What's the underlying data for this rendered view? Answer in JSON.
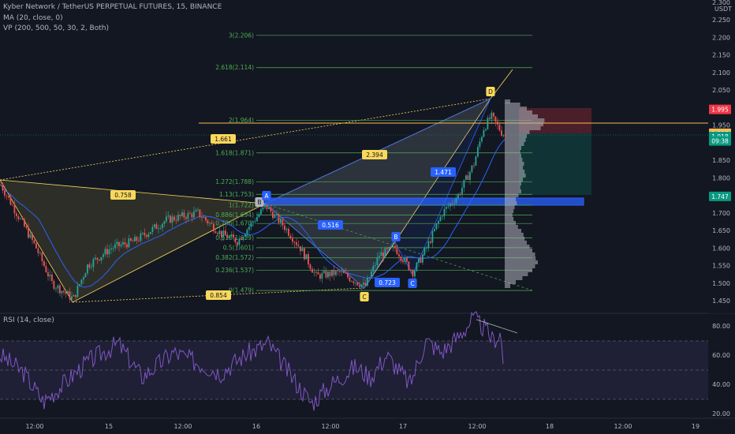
{
  "header": {
    "symbol_line": "Kyber Network / TetherUS PERPETUAL FUTURES, 15, BINANCE",
    "ma_line": "MA (20, close, 0)",
    "vp_line": "VP (200, 500, 50, 30, 2, Both)",
    "rsi_line": "RSI (14, close)"
  },
  "price_axis": {
    "currency": "USDT",
    "ticks": [
      "2.300",
      "2.250",
      "2.200",
      "2.150",
      "2.100",
      "2.050",
      "2.000",
      "1.950",
      "1.900",
      "1.850",
      "1.800",
      "1.750",
      "1.700",
      "1.650",
      "1.600",
      "1.550",
      "1.500",
      "1.450"
    ],
    "tick_values": [
      2.3,
      2.25,
      2.2,
      2.15,
      2.1,
      2.05,
      2.0,
      1.95,
      1.9,
      1.85,
      1.8,
      1.75,
      1.7,
      1.65,
      1.6,
      1.55,
      1.5,
      1.45
    ],
    "badges": [
      {
        "text": "1.995",
        "value": 1.995,
        "color": "#f23645"
      },
      {
        "text": "1.927",
        "value": 1.927,
        "color": "#ffb74d"
      },
      {
        "text": "1.918",
        "value": 1.918,
        "color": "#089981"
      },
      {
        "text": "09:38",
        "value": 1.905,
        "color": "#089981"
      },
      {
        "text": "1.747",
        "value": 1.747,
        "color": "#089981"
      }
    ]
  },
  "rsi_axis": {
    "ticks": [
      "80.00",
      "60.00",
      "40.00",
      "20.00"
    ],
    "tick_values": [
      80,
      60,
      40,
      20
    ]
  },
  "time_axis": {
    "labels": [
      "12:00",
      "15",
      "12:00",
      "16",
      "12:00",
      "17",
      "12:00",
      "18",
      "12:00",
      "19"
    ]
  },
  "fib_levels": [
    {
      "label": "3(2.206)",
      "value": 2.206
    },
    {
      "label": "2.618(2.114)",
      "value": 2.114
    },
    {
      "label": "2(1.964)",
      "value": 1.964
    },
    {
      "label": "1.618(1.871)",
      "value": 1.871
    },
    {
      "label": "1.272(1.788)",
      "value": 1.788
    },
    {
      "label": "1.13(1.753)",
      "value": 1.753
    },
    {
      "label": "1(1.722)",
      "value": 1.722
    },
    {
      "label": "0.886(1.694)",
      "value": 1.694
    },
    {
      "label": "0.786(1.670)",
      "value": 1.67
    },
    {
      "label": "0.618(1.629)",
      "value": 1.629
    },
    {
      "label": "0.5(1.601)",
      "value": 1.601
    },
    {
      "label": "0.382(1.572)",
      "value": 1.572
    },
    {
      "label": "0.236(1.537)",
      "value": 1.537
    },
    {
      "label": "0(1.479)",
      "value": 1.479
    }
  ],
  "pattern_labels": [
    {
      "text": "1.661",
      "style": "yellow"
    },
    {
      "text": "0.758",
      "style": "yellow"
    },
    {
      "text": "0.854",
      "style": "yellow"
    },
    {
      "text": "2.394",
      "style": "yellow"
    },
    {
      "text": "D",
      "style": "yellow"
    },
    {
      "text": "C",
      "style": "yellow"
    },
    {
      "text": "B",
      "style": "grey"
    },
    {
      "text": "0.516",
      "style": "blue"
    },
    {
      "text": "0.723",
      "style": "blue"
    },
    {
      "text": "1.471",
      "style": "blue"
    },
    {
      "text": "B",
      "style": "blue"
    },
    {
      "text": "C",
      "style": "blue"
    },
    {
      "text": "A",
      "style": "blue"
    }
  ],
  "colors": {
    "background": "#131722",
    "up": "#26a69a",
    "down": "#ef5350",
    "ma": "#2962ff",
    "fib": "#4caf50",
    "pattern": "#f9d85b",
    "rsi": "#7e57c2"
  }
}
